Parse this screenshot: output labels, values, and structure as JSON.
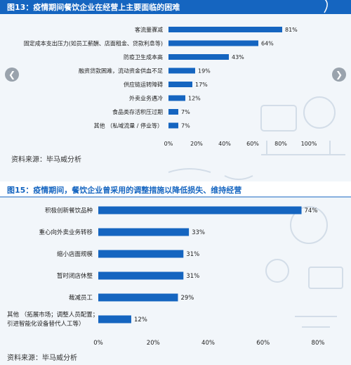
{
  "colors": {
    "header": "#1565c0",
    "bar": "#1565c0",
    "label": "#222222"
  },
  "chart_data": [
    {
      "type": "bar",
      "orientation": "horizontal",
      "title": "图13：疫情期间餐饮企业在经营上主要面临的困难",
      "categories": [
        "客流量骤减",
        "固定成本支出压力(如员工薪酬、店面租金、贷款利息等)",
        "防疫卫生成本高",
        "融资贷款困难，流动资金供血不足",
        "供应链运转障碍",
        "外卖业务遇冷",
        "食品类存活积压过期",
        "其他 （私域流量 / 停业等）"
      ],
      "values": [
        81,
        64,
        43,
        19,
        17,
        12,
        7,
        7
      ],
      "value_labels": [
        "81%",
        "64%",
        "43%",
        "19%",
        "17%",
        "12%",
        "7%",
        "7%"
      ],
      "xlim": [
        0,
        100
      ],
      "xticks": [
        "0%",
        "20%",
        "40%",
        "60%",
        "80%",
        "100%"
      ],
      "source": "资料来源：毕马威分析"
    },
    {
      "type": "bar",
      "orientation": "horizontal",
      "title": "图15：疫情期间，餐饮企业曾采用的调整措施以降低损失、维持经营",
      "categories": [
        "积极创新餐饮品种",
        "重心向外卖业务转移",
        "缩小店面规模",
        "暂时闭店休整",
        "裁减员工",
        "其他 （拓展市场；调整人员配置；引进智能化设备替代人工等）"
      ],
      "category_lines": [
        [
          "积极创新餐饮品种"
        ],
        [
          "重心向外卖业务转移"
        ],
        [
          "缩小店面规模"
        ],
        [
          "暂时闭店休整"
        ],
        [
          "裁减员工"
        ],
        [
          "其他 （拓展市场；调整人员配置；",
          "引进智能化设备替代人工等）"
        ]
      ],
      "values": [
        74,
        33,
        31,
        31,
        29,
        12
      ],
      "value_labels": [
        "74%",
        "33%",
        "31%",
        "31%",
        "29%",
        "12%"
      ],
      "xlim": [
        0,
        80
      ],
      "xticks": [
        "0%",
        "20%",
        "40%",
        "60%",
        "80%"
      ],
      "source": "资料来源：毕马威分析"
    }
  ]
}
